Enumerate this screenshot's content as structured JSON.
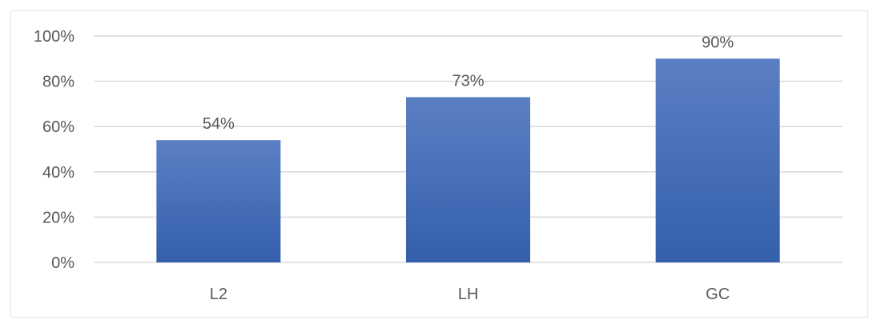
{
  "chart_data": {
    "type": "bar",
    "title": "",
    "xlabel": "",
    "ylabel": "",
    "categories": [
      "L2",
      "LH",
      "GC"
    ],
    "values": [
      54,
      73,
      90
    ],
    "data_labels": [
      "54%",
      "73%",
      "90%"
    ],
    "ylim": [
      0,
      100
    ],
    "yticks": [
      "0%",
      "20%",
      "40%",
      "60%",
      "80%",
      "100%"
    ],
    "grid": true,
    "legend": "none",
    "colors": {
      "bar_top": "#5b7fc4",
      "bar_bottom": "#345fab",
      "grid": "#d9d9d9",
      "text": "#595959"
    }
  }
}
